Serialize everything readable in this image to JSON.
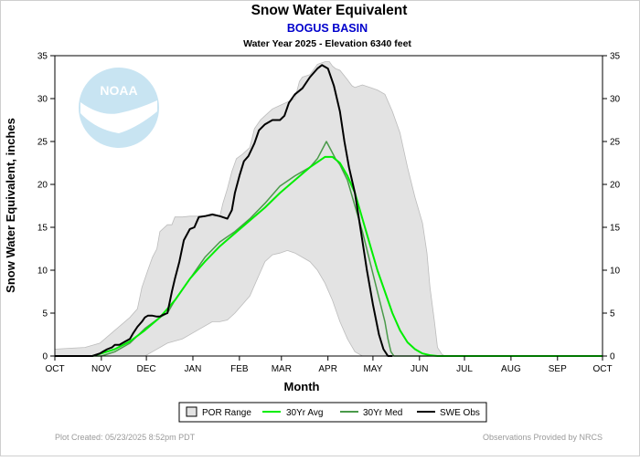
{
  "header": {
    "title": "Snow Water Equivalent",
    "station": "BOGUS BASIN",
    "subtitle": "Water Year 2025 -  Elevation 6340 feet"
  },
  "footer": {
    "plot_created": "Plot Created: 05/23/2025 8:52pm PDT",
    "provider": "Observations Provided by NRCS"
  },
  "logo": {
    "text": "NOAA"
  },
  "colors": {
    "por_fill": "#e3e3e3",
    "por_edge": "#bcbcbc",
    "avg": "#00ee00",
    "med": "#4a9a4a",
    "obs": "#000000",
    "logo": "#c8e4f2"
  },
  "chart_data": {
    "type": "line",
    "title": "Snow Water Equivalent",
    "xlabel": "Month",
    "ylabel": "Snow Water Equivalent, inches",
    "xlim": [
      0,
      365
    ],
    "ylim": [
      0,
      35
    ],
    "yticks": [
      0,
      5,
      10,
      15,
      20,
      25,
      30,
      35
    ],
    "month_ticks": [
      {
        "day": 0,
        "label": "OCT"
      },
      {
        "day": 31,
        "label": "NOV"
      },
      {
        "day": 61,
        "label": "DEC"
      },
      {
        "day": 92,
        "label": "JAN"
      },
      {
        "day": 123,
        "label": "FEB"
      },
      {
        "day": 151,
        "label": "MAR"
      },
      {
        "day": 182,
        "label": "APR"
      },
      {
        "day": 212,
        "label": "MAY"
      },
      {
        "day": 243,
        "label": "JUN"
      },
      {
        "day": 273,
        "label": "JUL"
      },
      {
        "day": 304,
        "label": "AUG"
      },
      {
        "day": 335,
        "label": "SEP"
      },
      {
        "day": 365,
        "label": "OCT"
      }
    ],
    "legend": [
      "POR Range",
      "30Yr Avg",
      "30Yr Med",
      "SWE Obs"
    ],
    "por_range": {
      "upper": [
        [
          0,
          0.8
        ],
        [
          10,
          0.9
        ],
        [
          20,
          1.0
        ],
        [
          30,
          1.5
        ],
        [
          40,
          3.0
        ],
        [
          50,
          4.5
        ],
        [
          55,
          5.5
        ],
        [
          58,
          8.0
        ],
        [
          62,
          10.0
        ],
        [
          65,
          11.5
        ],
        [
          68,
          12.5
        ],
        [
          70,
          14.5
        ],
        [
          75,
          15.3
        ],
        [
          78,
          15.3
        ],
        [
          80,
          16.2
        ],
        [
          85,
          16.2
        ],
        [
          90,
          16.3
        ],
        [
          95,
          16.3
        ],
        [
          100,
          16.3
        ],
        [
          110,
          16.3
        ],
        [
          112,
          17.8
        ],
        [
          115,
          19.5
        ],
        [
          118,
          21.5
        ],
        [
          121,
          23.0
        ],
        [
          125,
          23.5
        ],
        [
          130,
          24.3
        ],
        [
          133,
          26.5
        ],
        [
          137,
          27.5
        ],
        [
          140,
          28.0
        ],
        [
          145,
          28.8
        ],
        [
          150,
          29.2
        ],
        [
          155,
          29.6
        ],
        [
          160,
          30.0
        ],
        [
          163,
          32.0
        ],
        [
          165,
          32.5
        ],
        [
          170,
          32.8
        ],
        [
          173,
          33.5
        ],
        [
          175,
          34.0
        ],
        [
          180,
          34.3
        ],
        [
          183,
          34.3
        ],
        [
          185,
          33.8
        ],
        [
          187,
          33.5
        ],
        [
          190,
          33.3
        ],
        [
          195,
          32.2
        ],
        [
          198,
          31.5
        ],
        [
          200,
          31.3
        ],
        [
          205,
          31.6
        ],
        [
          210,
          31.3
        ],
        [
          215,
          31.0
        ],
        [
          220,
          30.5
        ],
        [
          225,
          28.5
        ],
        [
          230,
          26.0
        ],
        [
          235,
          22.0
        ],
        [
          240,
          18.5
        ],
        [
          245,
          15.5
        ],
        [
          248,
          12.0
        ],
        [
          250,
          8.0
        ],
        [
          253,
          4.0
        ],
        [
          255,
          1.0
        ],
        [
          258,
          0.2
        ],
        [
          260,
          0.0
        ]
      ],
      "lower": [
        [
          0,
          0.0
        ],
        [
          60,
          0.0
        ],
        [
          65,
          0.5
        ],
        [
          70,
          1.0
        ],
        [
          75,
          1.5
        ],
        [
          85,
          2.0
        ],
        [
          95,
          3.0
        ],
        [
          105,
          4.0
        ],
        [
          110,
          4.0
        ],
        [
          115,
          4.2
        ],
        [
          120,
          5.0
        ],
        [
          125,
          6.0
        ],
        [
          130,
          7.0
        ],
        [
          135,
          9.0
        ],
        [
          140,
          11.0
        ],
        [
          145,
          11.8
        ],
        [
          150,
          12.0
        ],
        [
          155,
          12.3
        ],
        [
          160,
          12.0
        ],
        [
          165,
          11.5
        ],
        [
          170,
          11.0
        ],
        [
          175,
          10.0
        ],
        [
          180,
          8.5
        ],
        [
          185,
          6.5
        ],
        [
          190,
          4.0
        ],
        [
          195,
          2.0
        ],
        [
          200,
          0.5
        ],
        [
          205,
          0.0
        ]
      ]
    },
    "series": [
      {
        "name": "30Yr Avg",
        "points": [
          [
            0,
            0.0
          ],
          [
            10,
            0.0
          ],
          [
            20,
            0.0
          ],
          [
            25,
            0.0
          ],
          [
            31,
            0.3
          ],
          [
            40,
            0.8
          ],
          [
            50,
            1.7
          ],
          [
            60,
            3.0
          ],
          [
            70,
            4.5
          ],
          [
            80,
            6.5
          ],
          [
            90,
            9.0
          ],
          [
            100,
            11.0
          ],
          [
            110,
            12.8
          ],
          [
            120,
            14.3
          ],
          [
            130,
            15.8
          ],
          [
            140,
            17.3
          ],
          [
            150,
            19.0
          ],
          [
            160,
            20.5
          ],
          [
            170,
            22.0
          ],
          [
            175,
            22.6
          ],
          [
            180,
            23.2
          ],
          [
            185,
            23.2
          ],
          [
            190,
            22.5
          ],
          [
            195,
            21.0
          ],
          [
            200,
            19.0
          ],
          [
            205,
            16.0
          ],
          [
            210,
            13.0
          ],
          [
            215,
            10.0
          ],
          [
            220,
            7.5
          ],
          [
            225,
            5.0
          ],
          [
            230,
            3.0
          ],
          [
            235,
            1.6
          ],
          [
            240,
            0.8
          ],
          [
            245,
            0.3
          ],
          [
            250,
            0.1
          ],
          [
            255,
            0.0
          ],
          [
            365,
            0.0
          ]
        ]
      },
      {
        "name": "30Yr Med",
        "points": [
          [
            0,
            0.0
          ],
          [
            31,
            0.0
          ],
          [
            40,
            0.5
          ],
          [
            50,
            1.5
          ],
          [
            60,
            3.2
          ],
          [
            70,
            4.5
          ],
          [
            75,
            5.0
          ],
          [
            80,
            6.5
          ],
          [
            90,
            9.0
          ],
          [
            100,
            11.5
          ],
          [
            110,
            13.3
          ],
          [
            120,
            14.5
          ],
          [
            130,
            16.0
          ],
          [
            140,
            17.8
          ],
          [
            150,
            19.8
          ],
          [
            160,
            21.0
          ],
          [
            170,
            22.0
          ],
          [
            175,
            23.0
          ],
          [
            178,
            24.0
          ],
          [
            181,
            25.0
          ],
          [
            184,
            24.0
          ],
          [
            187,
            23.0
          ],
          [
            190,
            22.3
          ],
          [
            195,
            20.5
          ],
          [
            200,
            17.5
          ],
          [
            205,
            14.5
          ],
          [
            210,
            11.0
          ],
          [
            215,
            7.5
          ],
          [
            220,
            4.0
          ],
          [
            222,
            2.0
          ],
          [
            224,
            0.5
          ],
          [
            226,
            0.0
          ],
          [
            365,
            0.0
          ]
        ]
      },
      {
        "name": "SWE Obs",
        "points": [
          [
            0,
            0.0
          ],
          [
            20,
            0.0
          ],
          [
            25,
            0.0
          ],
          [
            30,
            0.3
          ],
          [
            32,
            0.5
          ],
          [
            35,
            0.8
          ],
          [
            38,
            1.0
          ],
          [
            40,
            1.3
          ],
          [
            43,
            1.3
          ],
          [
            47,
            1.7
          ],
          [
            50,
            2.0
          ],
          [
            52,
            2.6
          ],
          [
            55,
            3.4
          ],
          [
            58,
            4.0
          ],
          [
            60,
            4.5
          ],
          [
            62,
            4.7
          ],
          [
            65,
            4.7
          ],
          [
            68,
            4.6
          ],
          [
            70,
            4.6
          ],
          [
            72,
            4.8
          ],
          [
            75,
            5.0
          ],
          [
            78,
            7.5
          ],
          [
            80,
            9.0
          ],
          [
            83,
            11.0
          ],
          [
            86,
            13.5
          ],
          [
            90,
            14.8
          ],
          [
            93,
            15.0
          ],
          [
            96,
            16.2
          ],
          [
            100,
            16.3
          ],
          [
            105,
            16.5
          ],
          [
            110,
            16.3
          ],
          [
            115,
            16.0
          ],
          [
            118,
            17.0
          ],
          [
            120,
            19.0
          ],
          [
            123,
            21.0
          ],
          [
            126,
            22.7
          ],
          [
            129,
            23.3
          ],
          [
            133,
            24.8
          ],
          [
            136,
            26.3
          ],
          [
            140,
            27.0
          ],
          [
            145,
            27.5
          ],
          [
            150,
            27.5
          ],
          [
            153,
            28.0
          ],
          [
            156,
            29.5
          ],
          [
            160,
            30.5
          ],
          [
            165,
            31.2
          ],
          [
            170,
            32.5
          ],
          [
            175,
            33.5
          ],
          [
            178,
            33.9
          ],
          [
            182,
            33.5
          ],
          [
            186,
            31.5
          ],
          [
            188,
            30.0
          ],
          [
            190,
            28.5
          ],
          [
            193,
            25.0
          ],
          [
            196,
            22.0
          ],
          [
            200,
            19.0
          ],
          [
            204,
            14.5
          ],
          [
            208,
            10.0
          ],
          [
            212,
            6.0
          ],
          [
            216,
            2.5
          ],
          [
            219,
            0.8
          ],
          [
            222,
            0.0
          ],
          [
            225,
            0.0
          ]
        ]
      }
    ]
  }
}
